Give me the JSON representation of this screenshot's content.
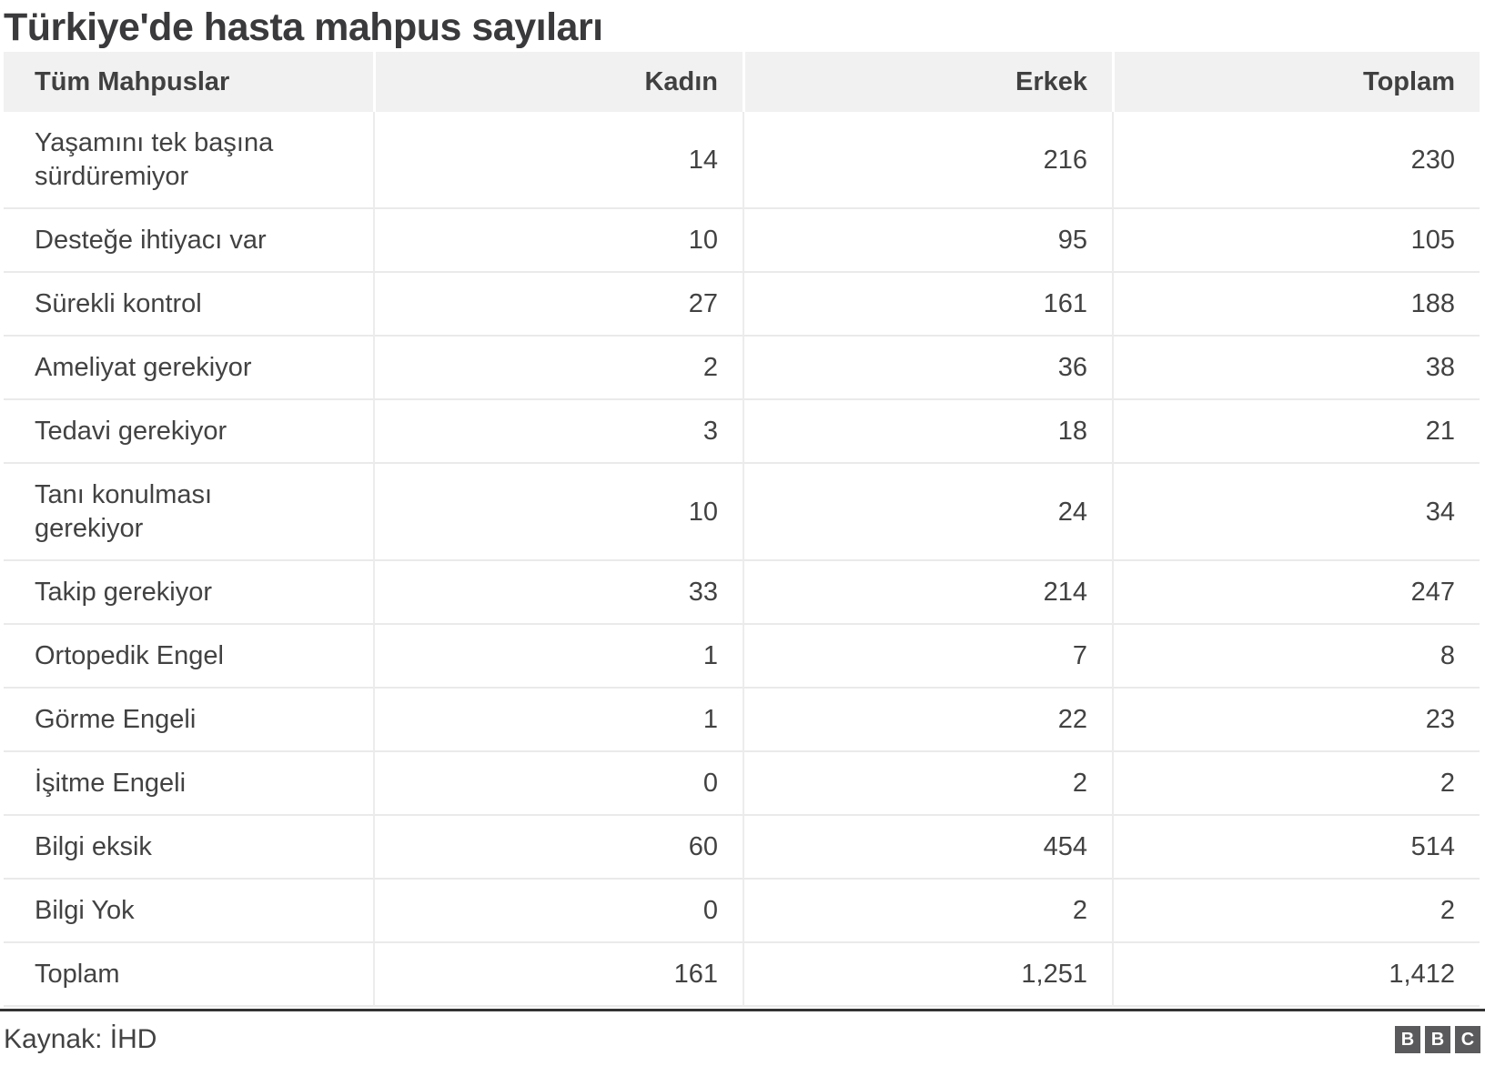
{
  "title": "Türkiye'de hasta mahpus sayıları",
  "chart_data": {
    "type": "table",
    "columns": [
      "Tüm Mahpuslar",
      "Kadın",
      "Erkek",
      "Toplam"
    ],
    "rows": [
      {
        "label": "Yaşamını tek başına sürdüremiyor",
        "values": [
          "14",
          "216",
          "230"
        ]
      },
      {
        "label": "Desteğe ihtiyacı var",
        "values": [
          "10",
          "95",
          "105"
        ]
      },
      {
        "label": "Sürekli kontrol",
        "values": [
          "27",
          "161",
          "188"
        ]
      },
      {
        "label": "Ameliyat gerekiyor",
        "values": [
          "2",
          "36",
          "38"
        ]
      },
      {
        "label": "Tedavi gerekiyor",
        "values": [
          "3",
          "18",
          "21"
        ]
      },
      {
        "label": "Tanı konulması gerekiyor",
        "values": [
          "10",
          "24",
          "34"
        ]
      },
      {
        "label": "Takip gerekiyor",
        "values": [
          "33",
          "214",
          "247"
        ]
      },
      {
        "label": "Ortopedik Engel",
        "values": [
          "1",
          "7",
          "8"
        ]
      },
      {
        "label": "Görme Engeli",
        "values": [
          "1",
          "22",
          "23"
        ]
      },
      {
        "label": "İşitme Engeli",
        "values": [
          "0",
          "2",
          "2"
        ]
      },
      {
        "label": "Bilgi eksik",
        "values": [
          "60",
          "454",
          "514"
        ]
      },
      {
        "label": "Bilgi Yok",
        "values": [
          "0",
          "2",
          "2"
        ]
      },
      {
        "label": "Toplam",
        "values": [
          "161",
          "1,251",
          "1,412"
        ]
      }
    ]
  },
  "footer": {
    "source": "Kaynak: İHD",
    "logo_letters": [
      "B",
      "B",
      "C"
    ]
  },
  "colors": {
    "title_text": "#3a3a3c",
    "body_text": "#424242",
    "header_bg": "#f1f1f1",
    "row_border": "#eaeaea",
    "divider": "#333333",
    "logo_bg": "#5a5a5c"
  }
}
